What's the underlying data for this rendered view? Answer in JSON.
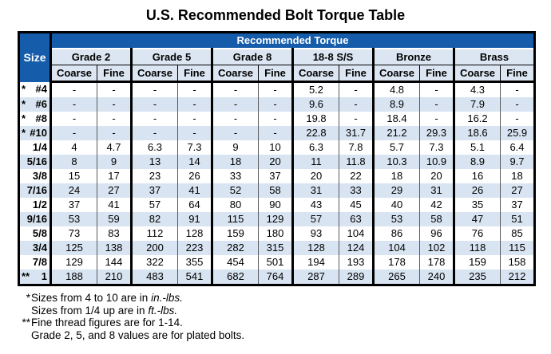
{
  "title": "U.S. Recommended Bolt Torque Table",
  "table": {
    "size_header": "Size",
    "torque_header": "Recommended Torque",
    "groups": [
      {
        "label": "Grade 2"
      },
      {
        "label": "Grade 5"
      },
      {
        "label": "Grade 8"
      },
      {
        "label": "18-8 S/S"
      },
      {
        "label": "Bronze"
      },
      {
        "label": "Brass"
      }
    ],
    "thread": {
      "coarse": "Coarse",
      "fine": "Fine"
    },
    "rows": [
      {
        "prefix": "*",
        "size": "#4",
        "values": [
          "-",
          "-",
          "-",
          "-",
          "-",
          "-",
          "5.2",
          "-",
          "4.8",
          "-",
          "4.3",
          "-"
        ]
      },
      {
        "prefix": "*",
        "size": "#6",
        "values": [
          "-",
          "-",
          "-",
          "-",
          "-",
          "-",
          "9.6",
          "-",
          "8.9",
          "-",
          "7.9",
          "-"
        ]
      },
      {
        "prefix": "*",
        "size": "#8",
        "values": [
          "-",
          "-",
          "-",
          "-",
          "-",
          "-",
          "19.8",
          "-",
          "18.4",
          "-",
          "16.2",
          "-"
        ]
      },
      {
        "prefix": "*",
        "size": "#10",
        "values": [
          "-",
          "-",
          "-",
          "-",
          "-",
          "-",
          "22.8",
          "31.7",
          "21.2",
          "29.3",
          "18.6",
          "25.9"
        ]
      },
      {
        "prefix": "",
        "size": "1/4",
        "values": [
          "4",
          "4.7",
          "6.3",
          "7.3",
          "9",
          "10",
          "6.3",
          "7.8",
          "5.7",
          "7.3",
          "5.1",
          "6.4"
        ]
      },
      {
        "prefix": "",
        "size": "5/16",
        "values": [
          "8",
          "9",
          "13",
          "14",
          "18",
          "20",
          "11",
          "11.8",
          "10.3",
          "10.9",
          "8.9",
          "9.7"
        ]
      },
      {
        "prefix": "",
        "size": "3/8",
        "values": [
          "15",
          "17",
          "23",
          "26",
          "33",
          "37",
          "20",
          "22",
          "18",
          "20",
          "16",
          "18"
        ]
      },
      {
        "prefix": "",
        "size": "7/16",
        "values": [
          "24",
          "27",
          "37",
          "41",
          "52",
          "58",
          "31",
          "33",
          "29",
          "31",
          "26",
          "27"
        ]
      },
      {
        "prefix": "",
        "size": "1/2",
        "values": [
          "37",
          "41",
          "57",
          "64",
          "80",
          "90",
          "43",
          "45",
          "40",
          "42",
          "35",
          "37"
        ]
      },
      {
        "prefix": "",
        "size": "9/16",
        "values": [
          "53",
          "59",
          "82",
          "91",
          "115",
          "129",
          "57",
          "63",
          "53",
          "58",
          "47",
          "51"
        ]
      },
      {
        "prefix": "",
        "size": "5/8",
        "values": [
          "73",
          "83",
          "112",
          "128",
          "159",
          "180",
          "93",
          "104",
          "86",
          "96",
          "76",
          "85"
        ]
      },
      {
        "prefix": "",
        "size": "3/4",
        "values": [
          "125",
          "138",
          "200",
          "223",
          "282",
          "315",
          "128",
          "124",
          "104",
          "102",
          "118",
          "115"
        ]
      },
      {
        "prefix": "",
        "size": "7/8",
        "values": [
          "129",
          "144",
          "322",
          "355",
          "454",
          "501",
          "194",
          "193",
          "178",
          "178",
          "159",
          "158"
        ]
      },
      {
        "prefix": "**",
        "size": "1",
        "values": [
          "188",
          "210",
          "483",
          "541",
          "682",
          "764",
          "287",
          "289",
          "265",
          "240",
          "235",
          "212"
        ]
      }
    ]
  },
  "footnotes": [
    {
      "prefix": "*",
      "text": "Sizes from 4 to 10 are in ",
      "italic": "in.-lbs."
    },
    {
      "prefix": "",
      "text": "Sizes from 1/4 up are in ",
      "italic": "ft.-lbs."
    },
    {
      "prefix": "**",
      "text": "Fine thread figures are for 1-14.",
      "italic": ""
    },
    {
      "prefix": "",
      "text": "Grade 2, 5, and 8 values are for plated bolts.",
      "italic": ""
    }
  ],
  "colors": {
    "header_blue": "#155cab",
    "stripe_light_blue": "#d8e4f1",
    "header_light": "#dce6f2"
  }
}
